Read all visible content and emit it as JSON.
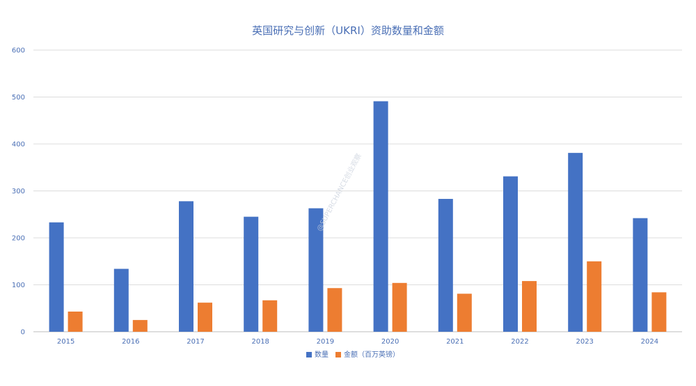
{
  "chart_data": {
    "type": "bar",
    "title": "英国研究与创新（UKRI）资助数量和金额",
    "categories": [
      "2015",
      "2016",
      "2017",
      "2018",
      "2019",
      "2020",
      "2021",
      "2022",
      "2023",
      "2024"
    ],
    "series": [
      {
        "name": "数量",
        "color": "#4472c4",
        "values": [
          233,
          134,
          278,
          245,
          263,
          491,
          283,
          331,
          381,
          242
        ]
      },
      {
        "name": "金额（百万英镑）",
        "color": "#ed7d31",
        "values": [
          43,
          25,
          62,
          67,
          93,
          104,
          81,
          108,
          150,
          84
        ]
      }
    ],
    "y_ticks": [
      "0",
      "100",
      "200",
      "300",
      "400",
      "500",
      "600"
    ],
    "ylim": [
      0,
      600
    ],
    "grid": true,
    "legend": "bottom-center"
  },
  "watermark": "@SUPERCHANCE创业观察"
}
